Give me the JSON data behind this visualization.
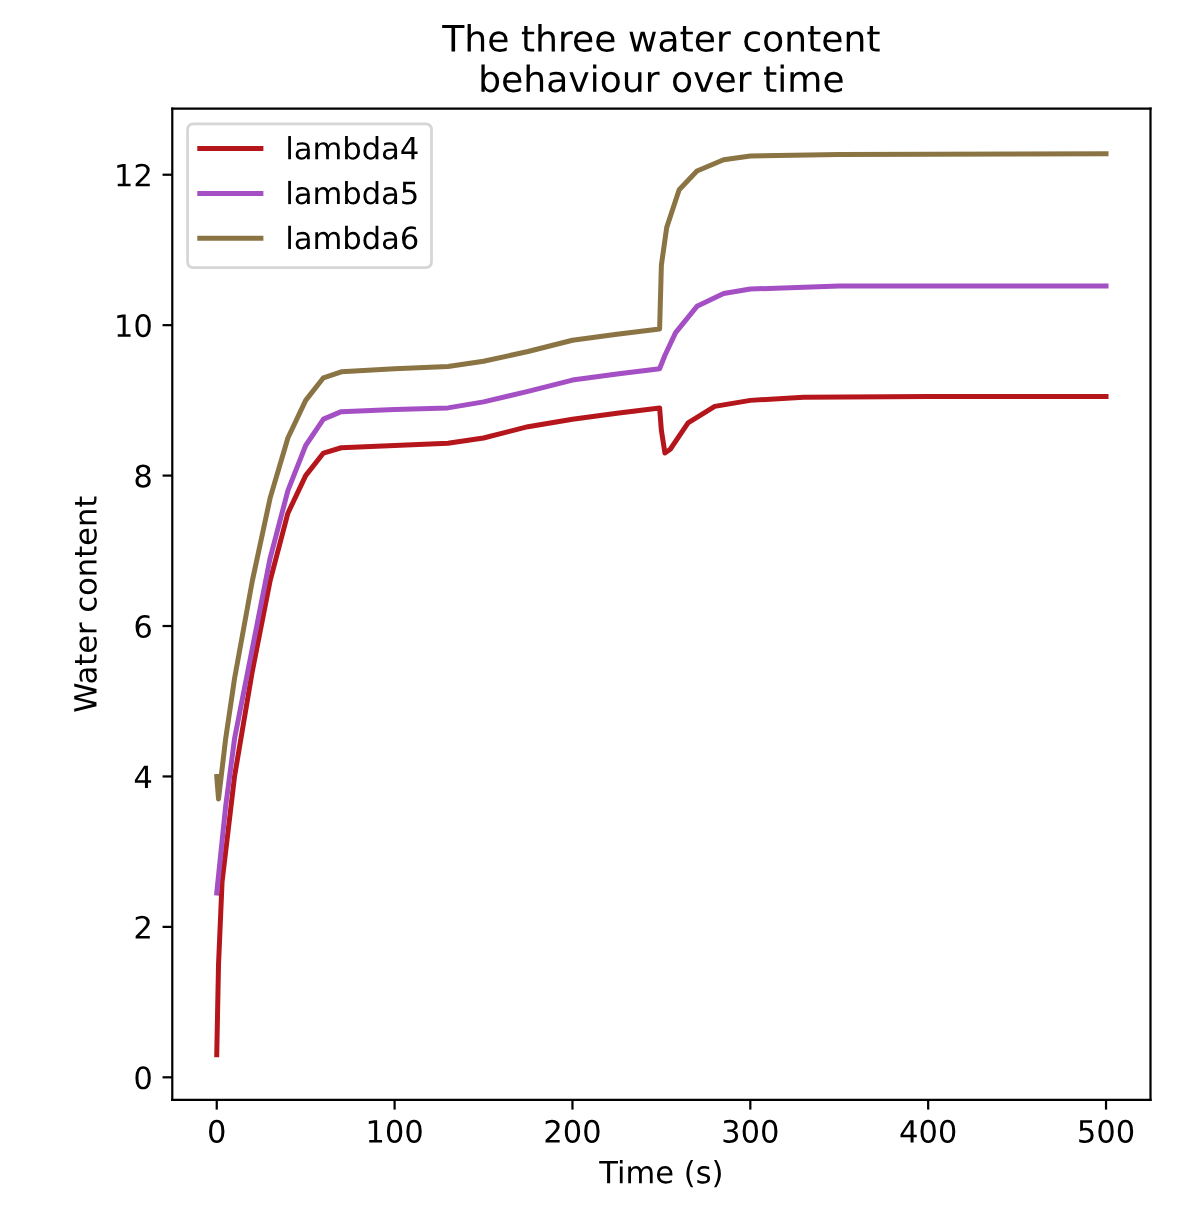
{
  "chart_data": {
    "type": "line",
    "title": "The three water content\nbehaviour over time",
    "xlabel": "Time (s)",
    "ylabel": "Water content",
    "xlim": [
      -25,
      525
    ],
    "xticks": [
      0,
      100,
      200,
      300,
      400,
      500
    ],
    "ylim": [
      -0.3,
      12.88
    ],
    "yticks": [
      0,
      2,
      4,
      6,
      8,
      10,
      12
    ],
    "grid": false,
    "legend": "top left",
    "marker": "none",
    "line_style": "solid",
    "series": [
      {
        "name": "lambda4",
        "color": "#b5161c",
        "x": [
          0,
          1,
          3,
          10,
          20,
          30,
          40,
          50,
          60,
          70,
          100,
          130,
          150,
          175,
          200,
          225,
          249,
          250,
          252,
          255,
          265,
          280,
          300,
          330,
          400,
          500
        ],
        "values": [
          0.3,
          1.5,
          2.6,
          4.0,
          5.4,
          6.6,
          7.5,
          8.0,
          8.3,
          8.37,
          8.4,
          8.43,
          8.5,
          8.65,
          8.75,
          8.83,
          8.9,
          8.6,
          8.3,
          8.35,
          8.7,
          8.92,
          9.0,
          9.04,
          9.05,
          9.05
        ]
      },
      {
        "name": "lambda5",
        "color": "#a54fc4",
        "x": [
          0,
          5,
          10,
          20,
          30,
          40,
          50,
          60,
          70,
          100,
          130,
          150,
          175,
          200,
          225,
          249,
          252,
          258,
          270,
          285,
          300,
          350,
          500
        ],
        "values": [
          2.45,
          3.6,
          4.5,
          5.7,
          6.9,
          7.8,
          8.4,
          8.75,
          8.85,
          8.88,
          8.9,
          8.98,
          9.12,
          9.27,
          9.35,
          9.42,
          9.6,
          9.9,
          10.25,
          10.42,
          10.48,
          10.52,
          10.52
        ]
      },
      {
        "name": "lambda6",
        "color": "#8b7444",
        "x": [
          0,
          1,
          5,
          10,
          20,
          30,
          40,
          50,
          60,
          70,
          100,
          130,
          150,
          175,
          200,
          225,
          249,
          250,
          253,
          260,
          270,
          285,
          300,
          350,
          500
        ],
        "values": [
          4.0,
          3.7,
          4.5,
          5.3,
          6.6,
          7.7,
          8.5,
          9.0,
          9.3,
          9.38,
          9.42,
          9.45,
          9.52,
          9.65,
          9.8,
          9.88,
          9.95,
          10.8,
          11.3,
          11.8,
          12.05,
          12.2,
          12.25,
          12.27,
          12.28
        ]
      }
    ]
  }
}
